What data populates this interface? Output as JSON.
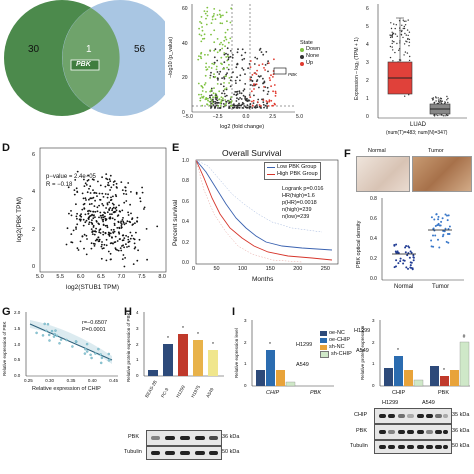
{
  "panels": {
    "A": {
      "left_count": "30",
      "overlap_count": "1",
      "right_count": "56",
      "overlap_gene": "PBK",
      "colors": {
        "left": "#4c8a4c",
        "right": "#a9c6e3",
        "overlap": "#6fa36b"
      }
    },
    "B": {
      "ylabel": "−log10 (p_value)",
      "xlabel": "log2 (fold change)",
      "x_ticks": [
        "−5.0",
        "−2.5",
        "0.0",
        "2.5",
        "5.0"
      ],
      "y_ticks": [
        "0",
        "20",
        "40",
        "60"
      ],
      "legend_title": "State",
      "legend": [
        {
          "label": "Down",
          "color": "#7fc141"
        },
        {
          "label": "None",
          "color": "#333333"
        },
        {
          "label": "Up",
          "color": "#e03a2f"
        }
      ],
      "highlight": "PBK"
    },
    "C": {
      "ylabel": "Expression – log₂ (TPM + 1)",
      "y_ticks": [
        "0",
        "1",
        "2",
        "3",
        "4",
        "5",
        "6"
      ],
      "caption_1": "LUAD",
      "caption_2": "(num(T)=483; num(N)=347)",
      "colors": {
        "tumor": "#e0413a",
        "normal": "#888888"
      }
    },
    "D": {
      "label": "D",
      "stats_p": "p−value = 2.4e−05",
      "stats_r": "R = −0.18",
      "ylabel": "log2(PBK TPM)",
      "xlabel": "log2(STUB1 TPM)",
      "x_ticks": [
        "5.0",
        "5.5",
        "6.0",
        "6.5",
        "7.0",
        "7.5",
        "8.0"
      ],
      "y_ticks": [
        "0",
        "2",
        "4",
        "6"
      ]
    },
    "E": {
      "label": "E",
      "title": "Overall Survival",
      "ylabel": "Percent survival",
      "xlabel": "Months",
      "x_ticks": [
        "0",
        "50",
        "100",
        "150",
        "200",
        "250"
      ],
      "y_ticks": [
        "0.0",
        "0.2",
        "0.4",
        "0.6",
        "0.8",
        "1.0"
      ],
      "legend": [
        {
          "label": "Low PBK Group",
          "color": "#3a62b0"
        },
        {
          "label": "High PBK Group",
          "color": "#d6342a"
        }
      ],
      "stats": [
        "Logrank p=0.016",
        "HR(high)=1.6",
        "p(HR)=0.0018",
        "n(high)=239",
        "n(low)=239"
      ]
    },
    "F": {
      "label": "F",
      "img_labels": [
        "Normal",
        "Tumor"
      ],
      "ylabel": "PBK optical density",
      "x_labels": [
        "Normal",
        "Tumor"
      ],
      "y_ticks": [
        "0.0",
        "0.2",
        "0.4",
        "0.6",
        "0.8"
      ]
    },
    "G": {
      "label": "G",
      "stats_r": "r=−0.6507",
      "stats_p": "P=0.0001",
      "ylabel": "Relative expression of PBK",
      "xlabel": "Relative expression of CHIP",
      "x_ticks": [
        "0.25",
        "0.30",
        "0.35",
        "0.40",
        "0.45"
      ],
      "y_ticks": [
        "0.0",
        "0.5",
        "1.0",
        "1.5",
        "2.0"
      ]
    },
    "H": {
      "label": "H",
      "ylabel": "Relative protein expression of PBK",
      "y_ticks": [
        "0",
        "1",
        "2",
        "3",
        "4"
      ],
      "categories": [
        "BEAS-2B",
        "PC-9",
        "H1299",
        "H1975",
        "A549"
      ],
      "colors": [
        "#2d4a7a",
        "#2d4a7a",
        "#c0392b",
        "#e8b24a",
        "#f0e68c"
      ],
      "blot_labels": [
        "PBK",
        "Tubulin"
      ],
      "kda": [
        "36 kDa",
        "50 kDa"
      ]
    },
    "I": {
      "label": "I",
      "ylabel": "Relative expression level",
      "y_ticks": [
        "0",
        "1",
        "2",
        "3"
      ],
      "legend": [
        {
          "label": "oe-NC",
          "color": "#2d4a7a"
        },
        {
          "label": "oe-CHIP",
          "color": "#2b6cb0"
        },
        {
          "label": "sh-NC",
          "color": "#e8a33a"
        },
        {
          "label": "sh-CHIP",
          "color": "#cfe8c8"
        }
      ],
      "cell_lines": [
        "H1299",
        "A549"
      ],
      "x_labels": [
        "CHIP",
        "PBK"
      ],
      "right_ylabel": "Relative protein expression",
      "right_y_ticks": [
        "0",
        "1",
        "2",
        "3"
      ],
      "right_cells": [
        "H1299",
        "A549"
      ],
      "blot_labels": [
        "CHIP",
        "PBK",
        "Tubulin"
      ],
      "kda": [
        "35 kDa",
        "36 kDa",
        "50 kDa"
      ]
    }
  }
}
